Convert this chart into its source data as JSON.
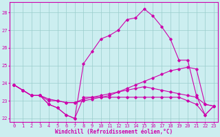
{
  "xlabel": "Windchill (Refroidissement éolien,°C)",
  "bg_color": "#cceef0",
  "line_color": "#cc00aa",
  "grid_color": "#99cccc",
  "xlim": [
    -0.5,
    23.5
  ],
  "ylim": [
    21.8,
    28.6
  ],
  "yticks": [
    22,
    23,
    24,
    25,
    26,
    27,
    28
  ],
  "xticks": [
    0,
    1,
    2,
    3,
    4,
    5,
    6,
    7,
    8,
    9,
    10,
    11,
    12,
    13,
    14,
    15,
    16,
    17,
    18,
    19,
    20,
    21,
    22,
    23
  ],
  "series": [
    [
      23.9,
      23.6,
      23.3,
      23.3,
      22.8,
      22.6,
      22.2,
      22.0,
      25.1,
      25.8,
      26.5,
      26.7,
      27.0,
      27.6,
      27.7,
      28.2,
      27.8,
      27.2,
      26.5,
      25.3,
      25.3,
      23.3,
      22.2,
      22.7
    ],
    [
      23.9,
      23.6,
      23.3,
      23.3,
      22.8,
      22.6,
      22.2,
      22.0,
      23.2,
      23.2,
      23.2,
      23.2,
      23.2,
      23.2,
      23.2,
      23.2,
      23.2,
      23.2,
      23.2,
      23.2,
      23.0,
      22.8,
      22.2,
      22.7
    ],
    [
      23.9,
      23.6,
      23.3,
      23.3,
      23.0,
      23.0,
      22.9,
      22.9,
      23.1,
      23.2,
      23.3,
      23.4,
      23.5,
      23.6,
      23.7,
      23.8,
      23.7,
      23.6,
      23.5,
      23.4,
      23.3,
      23.2,
      22.8,
      22.7
    ],
    [
      23.9,
      23.6,
      23.3,
      23.3,
      23.1,
      23.0,
      22.9,
      22.9,
      23.0,
      23.1,
      23.2,
      23.3,
      23.5,
      23.7,
      23.9,
      24.1,
      24.3,
      24.5,
      24.7,
      24.8,
      24.9,
      24.8,
      22.8,
      22.7
    ]
  ]
}
